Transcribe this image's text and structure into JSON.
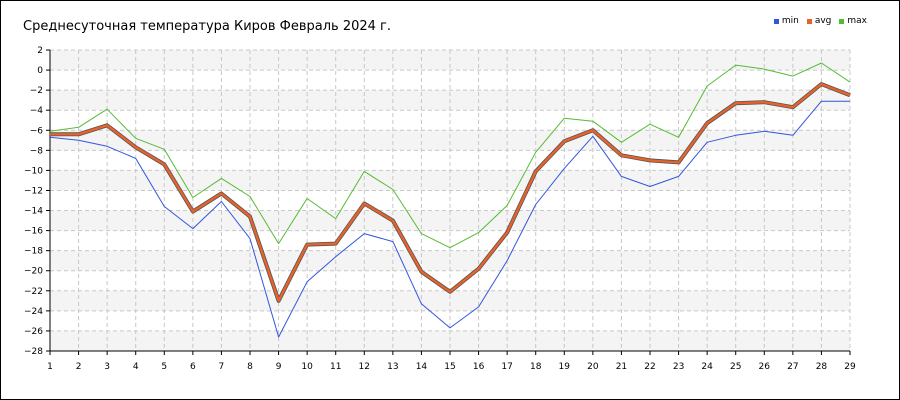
{
  "chart_data": {
    "type": "line",
    "title": "Среднесуточная температура Киров  Февраль 2024 г.",
    "xlabel": "",
    "ylabel": "",
    "x": [
      1,
      2,
      3,
      4,
      5,
      6,
      7,
      8,
      9,
      10,
      11,
      12,
      13,
      14,
      15,
      16,
      17,
      18,
      19,
      20,
      21,
      22,
      23,
      24,
      25,
      26,
      27,
      28,
      29
    ],
    "x_ticks": [
      "1",
      "2",
      "3",
      "4",
      "5",
      "6",
      "7",
      "8",
      "9",
      "10",
      "11",
      "12",
      "13",
      "14",
      "15",
      "16",
      "17",
      "18",
      "19",
      "20",
      "21",
      "22",
      "23",
      "24",
      "25",
      "26",
      "27",
      "28",
      "29"
    ],
    "y_ticks": [
      "2",
      "0",
      "−2",
      "−4",
      "−6",
      "−8",
      "−10",
      "−12",
      "−14",
      "−16",
      "−18",
      "−20",
      "−22",
      "−24",
      "−26",
      "−28"
    ],
    "xlim": [
      1,
      29
    ],
    "ylim": [
      -28,
      2
    ],
    "grid": true,
    "legend_position": "top-right",
    "series": [
      {
        "name": "min",
        "color": "#3355dd",
        "values": [
          -6.7,
          -7.0,
          -7.6,
          -8.8,
          -13.6,
          -15.8,
          -13.1,
          -16.8,
          -26.6,
          -21.1,
          -18.6,
          -16.3,
          -17.1,
          -23.3,
          -25.7,
          -23.6,
          -19.0,
          -13.4,
          -9.8,
          -6.6,
          -10.6,
          -11.6,
          -10.6,
          -7.2,
          -6.5,
          -6.1,
          -6.5,
          -3.1,
          -3.1
        ]
      },
      {
        "name": "avg",
        "color": "#e8622a",
        "values": [
          -6.4,
          -6.4,
          -5.5,
          -7.7,
          -9.4,
          -14.1,
          -12.3,
          -14.6,
          -23.0,
          -17.4,
          -17.3,
          -13.3,
          -15.0,
          -20.1,
          -22.1,
          -19.8,
          -16.2,
          -10.1,
          -7.1,
          -6.0,
          -8.5,
          -9.0,
          -9.2,
          -5.3,
          -3.3,
          -3.2,
          -3.7,
          -1.4,
          -2.5
        ]
      },
      {
        "name": "max",
        "color": "#55bb33",
        "values": [
          -6.1,
          -5.7,
          -3.9,
          -6.8,
          -7.9,
          -12.7,
          -10.8,
          -12.6,
          -17.3,
          -12.8,
          -14.8,
          -10.1,
          -11.9,
          -16.3,
          -17.7,
          -16.2,
          -13.5,
          -8.2,
          -4.8,
          -5.1,
          -7.2,
          -5.4,
          -6.7,
          -1.6,
          0.5,
          0.1,
          -0.6,
          0.7,
          -1.2
        ]
      }
    ]
  }
}
